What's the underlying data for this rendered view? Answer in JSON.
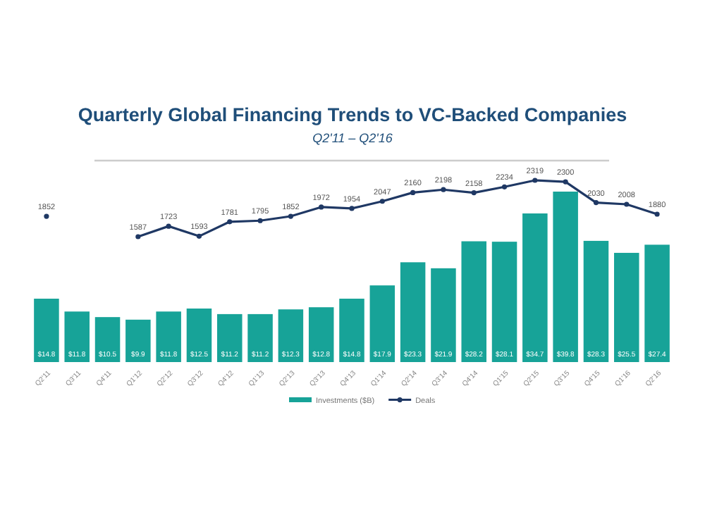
{
  "chart_data": {
    "type": "bar",
    "title": "Quarterly Global Financing Trends to VC-Backed Companies",
    "subtitle": "Q2'11 – Q2'16",
    "categories": [
      "Q2'11",
      "Q3'11",
      "Q4'11",
      "Q1'12",
      "Q2'12",
      "Q3'12",
      "Q4'12",
      "Q1'13",
      "Q2'13",
      "Q3'13",
      "Q4'13",
      "Q1'14",
      "Q2'14",
      "Q3'14",
      "Q4'14",
      "Q1'15",
      "Q2'15",
      "Q3'15",
      "Q4'15",
      "Q1'16",
      "Q2'16"
    ],
    "series": [
      {
        "name": "Investments ($B)",
        "color": "#17a398",
        "values": [
          14.8,
          11.8,
          10.5,
          9.9,
          11.8,
          12.5,
          11.2,
          11.2,
          12.3,
          12.8,
          14.8,
          17.9,
          23.3,
          21.9,
          28.2,
          28.1,
          34.7,
          39.8,
          28.3,
          25.5,
          27.4
        ],
        "value_labels": [
          "$14.8",
          "$11.8",
          "$10.5",
          "$9.9",
          "$11.8",
          "$12.5",
          "$11.2",
          "$11.2",
          "$12.3",
          "$12.8",
          "$14.8",
          "$17.9",
          "$23.3",
          "$21.9",
          "$28.2",
          "$28.1",
          "$34.7",
          "$39.8",
          "$28.3",
          "$25.5",
          "$27.4"
        ]
      },
      {
        "name": "Deals",
        "type": "line",
        "axis": "y2",
        "color": "#1f3864",
        "values": [
          1852,
          null,
          null,
          1587,
          1723,
          1593,
          1781,
          1795,
          1852,
          1972,
          1954,
          2047,
          2160,
          2198,
          2158,
          2234,
          2319,
          2300,
          2030,
          2008,
          1880
        ]
      }
    ],
    "data_labels": true,
    "legend": "bottom",
    "marker": "circle",
    "line_style": "solid"
  }
}
